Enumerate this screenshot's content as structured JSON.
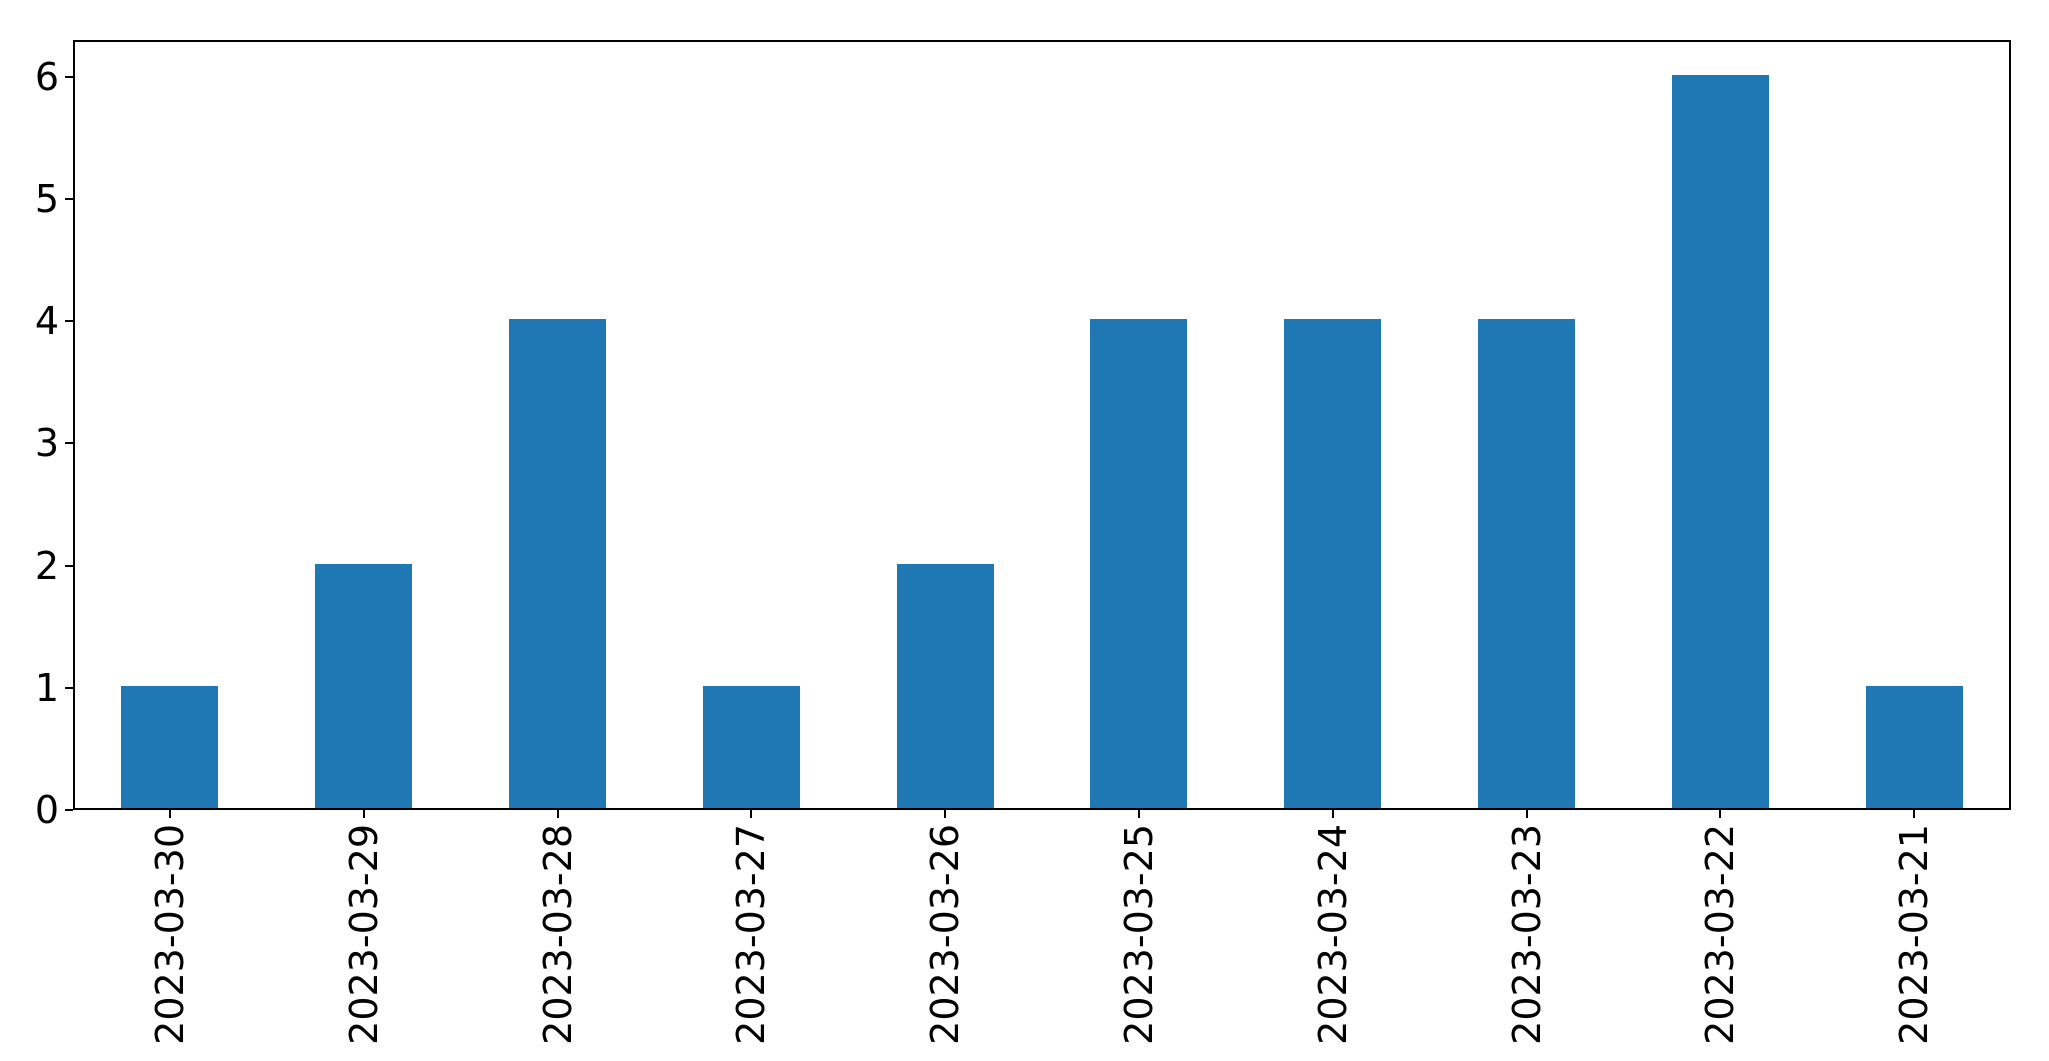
{
  "chart_data": {
    "type": "bar",
    "title": "",
    "xlabel": "",
    "ylabel": "",
    "categories": [
      "2023-03-30",
      "2023-03-29",
      "2023-03-28",
      "2023-03-27",
      "2023-03-26",
      "2023-03-25",
      "2023-03-24",
      "2023-03-23",
      "2023-03-22",
      "2023-03-21"
    ],
    "values": [
      1,
      2,
      4,
      1,
      2,
      4,
      4,
      4,
      6,
      1
    ],
    "yticks": [
      0,
      1,
      2,
      3,
      4,
      5,
      6
    ],
    "ylim": [
      0,
      6.3
    ],
    "x_tick_rotation": 90,
    "grid": false,
    "legend": false,
    "bar_color": "#1f77b4",
    "axis_color": "#000000",
    "background_color": "#ffffff",
    "bar_width_fraction": 0.5
  }
}
